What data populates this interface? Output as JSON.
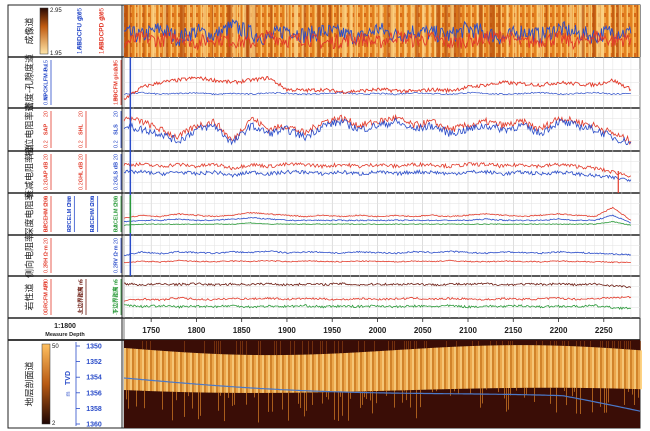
{
  "depth_scale": {
    "ratio": "1:1800",
    "label": "Measure Depth",
    "ticks": [
      1750,
      1800,
      1850,
      1900,
      1950,
      2000,
      2050,
      2100,
      2150,
      2200,
      2250
    ],
    "range": [
      1720,
      2290
    ]
  },
  "tracks": [
    {
      "id": "image",
      "name": "成像道",
      "color_scale": {
        "max": "2.95",
        "min": "1.95"
      },
      "curves": [
        {
          "name": "ABDCFU",
          "range": [
            "1.95",
            "g/c",
            "2.95"
          ],
          "color": "#2a4cc9"
        },
        {
          "name": "ABDCPD",
          "range": [
            "1.95",
            "g/c",
            "2.95"
          ],
          "color": "#e23a2a"
        }
      ]
    },
    {
      "id": "density",
      "name": "密度-孔隙度道",
      "curves": [
        {
          "name": "NPCKLFM",
          "range": [
            "0.45",
            "Pu",
            "-0.15"
          ],
          "color": "#2a4cc9"
        },
        {
          "name": "BDCFM",
          "range": [
            "1.95",
            "g/cm3",
            "2.95"
          ],
          "color": "#e23a2a"
        }
      ]
    },
    {
      "id": "phase",
      "name": "相位电阻率道",
      "curves": [
        {
          "name": "SAP",
          "range": [
            "0.2",
            "",
            "20"
          ],
          "color": "#e23a2a"
        },
        {
          "name": "SHL",
          "range": [
            "0.2",
            "",
            "20"
          ],
          "color": "#e23a2a"
        },
        {
          "name": "SLS",
          "range": [
            "0.2",
            "",
            "20"
          ],
          "color": "#2a4cc9"
        }
      ]
    },
    {
      "id": "attenuation",
      "name": "衰减电阻率道",
      "curves": [
        {
          "name": "GAP",
          "range": [
            "0.2",
            "dB",
            "20"
          ],
          "color": "#e23a2a"
        },
        {
          "name": "GHL",
          "range": [
            "0.2",
            "dB",
            "20"
          ],
          "color": "#e23a2a"
        },
        {
          "name": "GLS",
          "range": [
            "0.2",
            "dB",
            "20"
          ],
          "color": "#2a4cc9"
        }
      ]
    },
    {
      "id": "deep",
      "name": "深度电阻率",
      "curves": [
        {
          "name": "BPCEHM",
          "range": [
            "0.2",
            "Ω·m",
            "200"
          ],
          "color": "#e23a2a"
        },
        {
          "name": "RPCELM",
          "range": [
            "0.2",
            "Ω·m",
            "200"
          ],
          "color": "#2a4cc9"
        },
        {
          "name": "RACEHM",
          "range": [
            "0.2",
            "Ω·m",
            "200"
          ],
          "color": "#2a4cc9"
        },
        {
          "name": "RACELM",
          "range": [
            "0.2",
            "Ω·m",
            "200"
          ],
          "color": "#2b9a3a"
        }
      ]
    },
    {
      "id": "lateral",
      "name": "侧向电阻率",
      "curves": [
        {
          "name": "RH",
          "range": [
            "0.2",
            "Ω·m",
            "20"
          ],
          "color": "#e23a2a"
        },
        {
          "name": "RV",
          "range": [
            "0.2",
            "Ω·m",
            "20"
          ],
          "color": "#2a4cc9"
        }
      ]
    },
    {
      "id": "lithology",
      "name": "岩性道",
      "curves": [
        {
          "name": "GRCFM",
          "range": [
            "0",
            "API",
            "100"
          ],
          "color": "#e23a2a"
        },
        {
          "name": "上边界距离",
          "range": [
            "-5",
            "m",
            "5"
          ],
          "color": "#6b1a10"
        },
        {
          "name": "下边界距离",
          "range": [
            "-5",
            "m",
            "5"
          ],
          "color": "#2b9a3a"
        }
      ]
    },
    {
      "id": "section",
      "name": "地层剖面道",
      "color_scale": {
        "max": "50",
        "min": "2"
      },
      "tvd_label": "TVD",
      "tvd_unit": "m",
      "tvd_ticks": [
        "1350",
        "1352",
        "1354",
        "1356",
        "1358",
        "1360"
      ]
    }
  ],
  "chart_data": {
    "type": "line",
    "title": "",
    "xlabel": "Measure Depth",
    "ylabel": "",
    "xlim": [
      1720,
      2290
    ],
    "x": [
      1720,
      1740,
      1760,
      1780,
      1800,
      1820,
      1840,
      1860,
      1880,
      1900,
      1920,
      1940,
      1960,
      1980,
      2000,
      2020,
      2040,
      2060,
      2080,
      2100,
      2120,
      2140,
      2160,
      2180,
      2200,
      2220,
      2240,
      2260,
      2280
    ],
    "series": [
      {
        "name": "ABDCFU",
        "values": [
          2.4,
          2.35,
          2.5,
          2.3,
          2.45,
          2.35,
          2.55,
          2.4,
          2.3,
          2.5,
          2.35,
          2.45,
          2.4,
          2.3,
          2.5,
          2.35,
          2.45,
          2.4,
          2.35,
          2.5,
          2.4,
          2.3,
          2.45,
          2.35,
          2.5,
          2.4,
          2.35,
          2.45,
          2.4
        ]
      },
      {
        "name": "ABDCPD",
        "values": [
          2.2,
          2.3,
          2.25,
          2.35,
          2.2,
          2.3,
          2.25,
          2.2,
          2.35,
          2.25,
          2.3,
          2.2,
          2.25,
          2.3,
          2.2,
          2.35,
          2.25,
          2.3,
          2.2,
          2.25,
          2.3,
          2.35,
          2.2,
          2.25,
          2.3,
          2.2,
          2.35,
          2.25,
          2.3
        ]
      },
      {
        "name": "BDCFM",
        "values": [
          2.1,
          2.35,
          2.45,
          2.5,
          2.55,
          2.5,
          2.45,
          2.5,
          2.55,
          2.3,
          2.28,
          2.3,
          2.25,
          2.27,
          2.3,
          2.28,
          2.26,
          2.3,
          2.28,
          2.35,
          2.4,
          2.45,
          2.42,
          2.4,
          2.45,
          2.42,
          2.4,
          2.5,
          2.3
        ]
      },
      {
        "name": "NPCKLFM",
        "values": [
          0.3,
          0.28,
          0.3,
          0.29,
          0.28,
          0.3,
          0.29,
          0.3,
          0.28,
          0.29,
          0.3,
          0.29,
          0.28,
          0.3,
          0.29,
          0.3,
          0.28,
          0.29,
          0.3,
          0.28,
          0.29,
          0.3,
          0.29,
          0.28,
          0.3,
          0.29,
          0.28,
          0.3,
          0.29
        ]
      },
      {
        "name": "SAP",
        "values": [
          8,
          7,
          5,
          3,
          6,
          7,
          2,
          8,
          5,
          6,
          4,
          7,
          8,
          6,
          7,
          8,
          6,
          7,
          5,
          6,
          7,
          6,
          7,
          5,
          8,
          7,
          6,
          4,
          2
        ]
      },
      {
        "name": "SLS",
        "values": [
          6,
          5,
          4,
          2,
          5,
          6,
          1.5,
          6,
          4,
          5,
          3,
          6,
          7,
          5,
          6,
          7,
          5,
          6,
          4,
          5,
          6,
          5,
          6,
          4,
          7,
          6,
          5,
          3,
          1.5
        ]
      },
      {
        "name": "GAP",
        "values": [
          7,
          7,
          6.5,
          7,
          6.5,
          7,
          6,
          7,
          6.5,
          7,
          7,
          6.5,
          7,
          6.5,
          7,
          6.5,
          7,
          7,
          6.5,
          7,
          7,
          6.5,
          7,
          6.5,
          7,
          6.5,
          6,
          5,
          4
        ]
      },
      {
        "name": "GLS",
        "values": [
          5,
          5,
          4.5,
          5,
          4.5,
          5,
          4,
          5,
          4.5,
          5,
          5,
          4.5,
          5,
          4.5,
          5,
          4.5,
          5,
          5,
          4.5,
          5,
          5,
          4.5,
          5,
          4.5,
          5,
          4.5,
          4,
          3.5,
          3
        ]
      },
      {
        "name": "BPCEHM",
        "values": [
          12,
          14,
          13,
          15,
          14,
          13,
          14,
          16,
          15,
          14,
          13,
          14,
          13,
          14,
          13,
          14,
          13,
          14,
          13,
          14,
          15,
          14,
          13,
          14,
          15,
          14,
          13,
          20,
          10
        ]
      },
      {
        "name": "RPCELM",
        "values": [
          9,
          10,
          10,
          11,
          10,
          10,
          11,
          12,
          11,
          10,
          10,
          10,
          10,
          10,
          10,
          10,
          10,
          10,
          10,
          10,
          11,
          10,
          10,
          10,
          11,
          10,
          10,
          14,
          8
        ]
      },
      {
        "name": "RACELM",
        "values": [
          6,
          7,
          7,
          7,
          7,
          7,
          7,
          8,
          7,
          7,
          7,
          7,
          7,
          7,
          7,
          7,
          7,
          7,
          7,
          7,
          7,
          7,
          7,
          7,
          7,
          7,
          7,
          9,
          6
        ]
      },
      {
        "name": "RH",
        "values": [
          3,
          3.5,
          3.2,
          3.6,
          3.4,
          3.3,
          3.5,
          3.4,
          3.6,
          3.3,
          3.5,
          3.4,
          3.3,
          3.5,
          3.4,
          3.3,
          3.5,
          3.4,
          3.6,
          3.4,
          3.3,
          3.5,
          3.4,
          3.3,
          3.5,
          3.4,
          3.3,
          3.2,
          3.1
        ]
      },
      {
        "name": "RV",
        "values": [
          5,
          6,
          5.5,
          6,
          5.8,
          5.6,
          6,
          5.8,
          6.2,
          5.7,
          6,
          5.9,
          5.6,
          6,
          5.8,
          5.6,
          6,
          5.8,
          6.1,
          5.8,
          5.6,
          6,
          5.8,
          5.6,
          6,
          5.8,
          5.6,
          5.4,
          5.2
        ]
      },
      {
        "name": "GRCFM",
        "values": [
          40,
          45,
          42,
          48,
          44,
          43,
          46,
          45,
          47,
          44,
          46,
          45,
          43,
          46,
          44,
          45,
          47,
          44,
          46,
          45,
          43,
          46,
          44,
          45,
          47,
          44,
          46,
          48,
          50
        ]
      },
      {
        "name": "上边界距离",
        "values": [
          3.5,
          3.2,
          3.4,
          3.3,
          3.5,
          3.2,
          3.4,
          3.3,
          3.5,
          3.2,
          3.4,
          3.3,
          3.5,
          3.2,
          3.4,
          3.3,
          3.5,
          3.2,
          3.4,
          3.3,
          3.5,
          3.2,
          3.4,
          3.3,
          3.5,
          3.2,
          3.4,
          3,
          2.5
        ]
      },
      {
        "name": "下边界距离",
        "values": [
          -2,
          -2.5,
          -2.3,
          -2.6,
          -2.4,
          -2.5,
          -2.3,
          -2.6,
          -2.4,
          -2.5,
          -2.3,
          -2.6,
          -2.4,
          -2.5,
          -2.3,
          -2.6,
          -2.4,
          -2.5,
          -2.3,
          -2.6,
          -2.4,
          -2.5,
          -2.3,
          -2.6,
          -2.4,
          -2.5,
          -2.3,
          -2.8,
          -3
        ]
      }
    ]
  }
}
